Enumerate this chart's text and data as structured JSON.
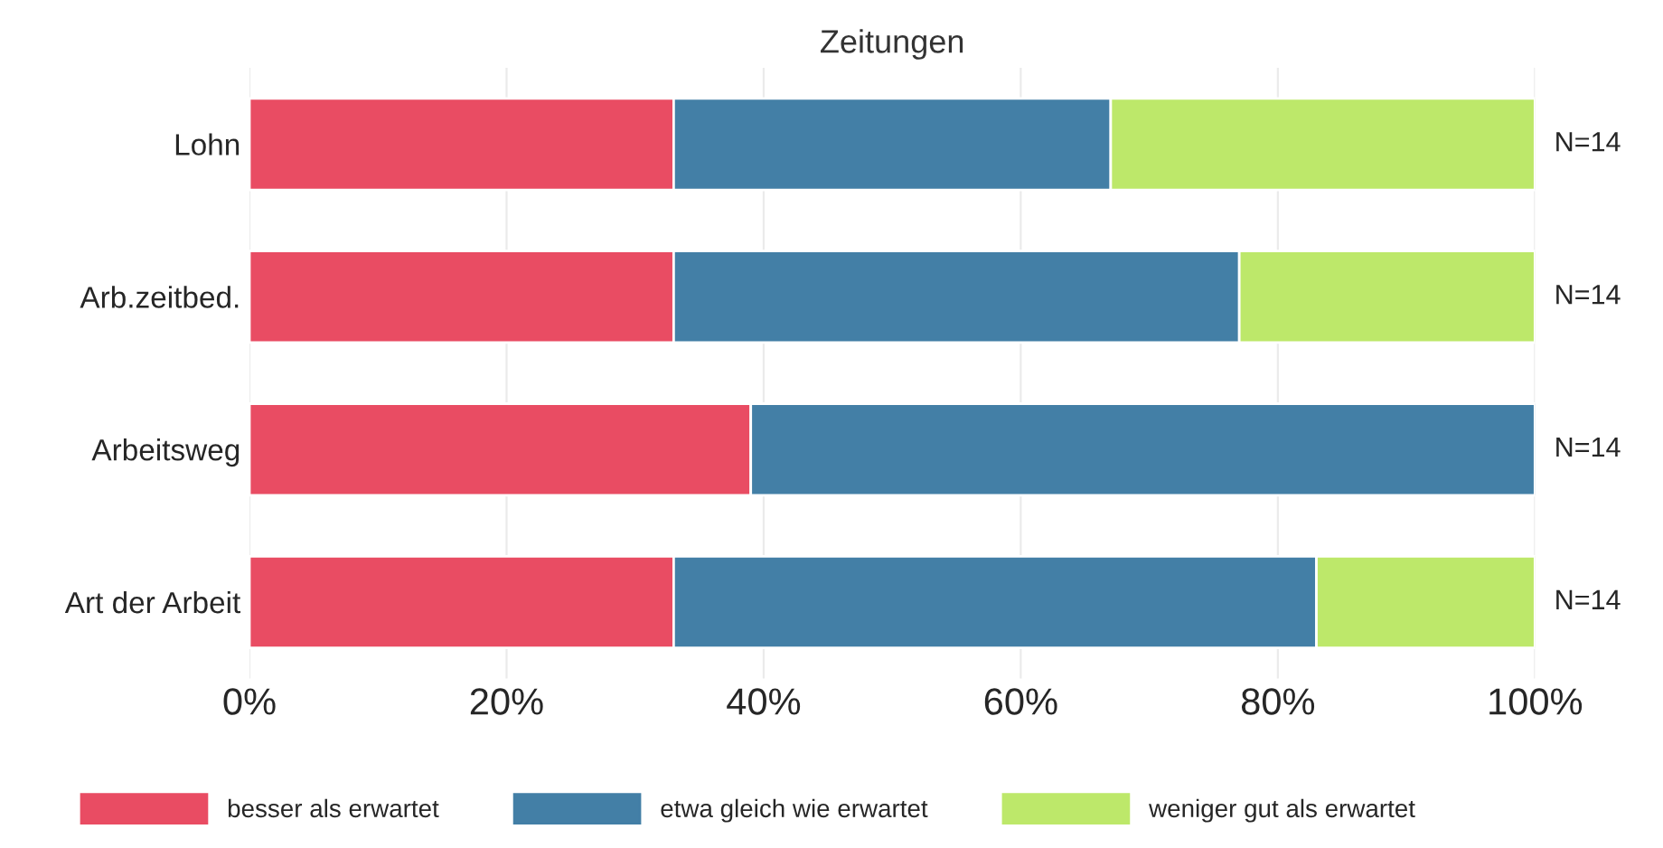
{
  "chart_data": {
    "type": "bar",
    "orientation": "horizontal",
    "stacked": true,
    "title": "Zeitungen",
    "categories": [
      "Lohn",
      "Arb.zeitbed.",
      "Arbeitsweg",
      "Art der Arbeit"
    ],
    "series": [
      {
        "name": "besser als erwartet",
        "color": "#e94c63",
        "values": [
          33,
          33,
          39,
          33
        ]
      },
      {
        "name": "etwa gleich wie erwartet",
        "color": "#437fa6",
        "values": [
          34,
          44,
          61,
          50
        ]
      },
      {
        "name": "weniger gut als erwartet",
        "color": "#bde86a",
        "values": [
          33,
          23,
          null,
          17
        ]
      }
    ],
    "xlim": [
      0,
      100
    ],
    "xticks": [
      {
        "value": 0,
        "label": "0%"
      },
      {
        "value": 20,
        "label": "20%"
      },
      {
        "value": 40,
        "label": "40%"
      },
      {
        "value": 60,
        "label": "60%"
      },
      {
        "value": 80,
        "label": "80%"
      },
      {
        "value": 100,
        "label": "100%"
      }
    ],
    "annotations": [
      "N=14",
      "N=14",
      "N=14",
      "N=14"
    ],
    "grid": "x",
    "legend": "bottom"
  }
}
